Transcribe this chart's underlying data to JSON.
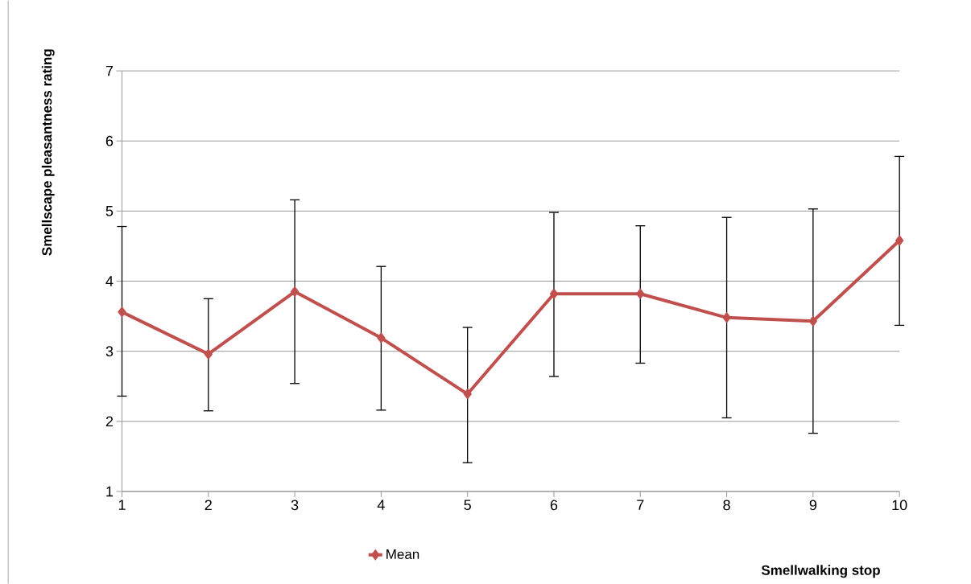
{
  "chart_data": {
    "type": "line",
    "xlabel": "Smellwalking stop",
    "ylabel": "Smellscape pleasantness rating",
    "categories": [
      "1",
      "2",
      "3",
      "4",
      "5",
      "6",
      "7",
      "8",
      "9",
      "10"
    ],
    "series": [
      {
        "name": "Mean",
        "color": "#c0504d",
        "values": [
          3.56,
          2.96,
          3.85,
          3.19,
          2.39,
          3.82,
          3.82,
          3.48,
          3.43,
          4.58
        ],
        "errors": [
          [
            2.36,
            4.78
          ],
          [
            2.15,
            3.75
          ],
          [
            2.54,
            5.16
          ],
          [
            2.16,
            4.21
          ],
          [
            1.41,
            3.34
          ],
          [
            2.64,
            4.98
          ],
          [
            2.83,
            4.79
          ],
          [
            2.05,
            4.91
          ],
          [
            1.83,
            5.03
          ],
          [
            3.37,
            5.78
          ]
        ]
      }
    ],
    "ylim": [
      1,
      7
    ],
    "yticks": [
      1,
      2,
      3,
      4,
      5,
      6,
      7
    ],
    "grid": "y",
    "legend": "bottom",
    "marker": "diamond",
    "line_style": "solid"
  }
}
